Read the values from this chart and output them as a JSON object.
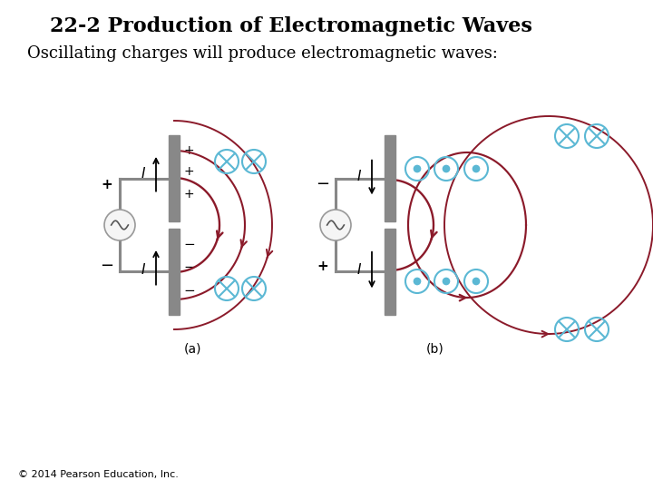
{
  "title": "22-2 Production of Electromagnetic Waves",
  "subtitle": "Oscillating charges will produce electromagnetic waves:",
  "copyright": "© 2014 Pearson Education, Inc.",
  "background_color": "#ffffff",
  "title_fontsize": 16,
  "subtitle_fontsize": 13,
  "copyright_fontsize": 8,
  "dipole_color": "#888888",
  "field_color": "#8B1A2A",
  "symbol_color": "#5BB8D4",
  "text_color": "#000000"
}
